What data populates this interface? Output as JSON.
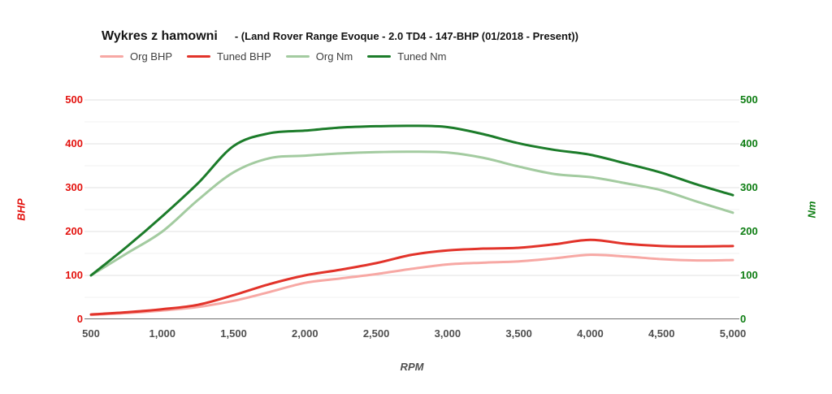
{
  "title": {
    "main": "Wykres z hamowni",
    "sub": "- (Land Rover Range Evoque - 2.0 TD4 - 147-BHP (01/2018 - Present))"
  },
  "colors": {
    "left_axis": "#e3120e",
    "right_axis": "#0d7d12",
    "x_axis_text": "#4f4f4f",
    "grid_major": "#e2e2e2",
    "grid_minor": "#f2f2f2",
    "zero_line": "#6f6f6f",
    "background": "#ffffff"
  },
  "chart_data": {
    "type": "line",
    "title": "Wykres z hamowni - (Land Rover Range Evoque - 2.0 TD4 - 147-BHP (01/2018 - Present))",
    "xlabel": "RPM",
    "ylabel_left": "BHP",
    "ylabel_right": "Nm",
    "xlim": [
      500,
      5000
    ],
    "ylim": [
      0,
      500
    ],
    "grid": "horizontal, major every 100, minor every 50",
    "legend_position": "top",
    "x": [
      500,
      750,
      1000,
      1250,
      1500,
      1750,
      2000,
      2250,
      2500,
      2750,
      3000,
      3250,
      3500,
      3750,
      4000,
      4250,
      4500,
      4750,
      5000
    ],
    "x_ticks": [
      500,
      1000,
      1500,
      2000,
      2500,
      3000,
      3500,
      4000,
      4500,
      5000
    ],
    "x_tick_labels": [
      "500",
      "1,000",
      "1,500",
      "2,000",
      "2,500",
      "3,000",
      "3,500",
      "4,000",
      "4,500",
      "5,000"
    ],
    "y_ticks": [
      0,
      100,
      200,
      300,
      400,
      500
    ],
    "series": [
      {
        "name": "Org BHP",
        "axis": "left",
        "color": "#f7a8a4",
        "values": [
          10,
          14,
          20,
          28,
          42,
          62,
          83,
          93,
          103,
          115,
          125,
          129,
          132,
          139,
          147,
          143,
          137,
          134,
          135
        ]
      },
      {
        "name": "Tuned BHP",
        "axis": "left",
        "color": "#e2332a",
        "values": [
          11,
          16,
          23,
          33,
          55,
          80,
          100,
          113,
          128,
          147,
          157,
          161,
          163,
          171,
          181,
          172,
          167,
          166,
          167
        ]
      },
      {
        "name": "Org Nm",
        "axis": "right",
        "color": "#a3cba0",
        "values": [
          100,
          150,
          200,
          272,
          335,
          367,
          373,
          378,
          381,
          382,
          380,
          368,
          348,
          331,
          324,
          310,
          294,
          268,
          243
        ]
      },
      {
        "name": "Tuned Nm",
        "axis": "right",
        "color": "#1c7c2a",
        "values": [
          100,
          165,
          235,
          310,
          395,
          424,
          430,
          437,
          440,
          441,
          438,
          422,
          401,
          386,
          375,
          355,
          334,
          307,
          283
        ]
      }
    ]
  }
}
